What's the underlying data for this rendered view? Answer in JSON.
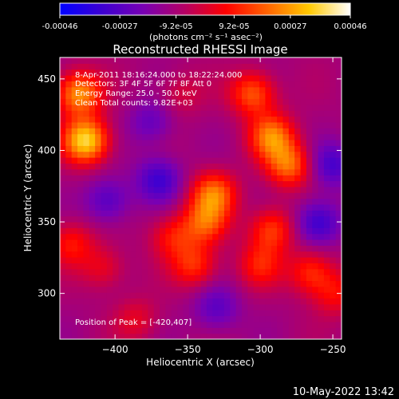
{
  "colorbar": {
    "tick_labels": [
      "-0.00046",
      "-0.00027",
      "-9.2e-05",
      "9.2e-05",
      "0.00027",
      "0.00046"
    ],
    "tick_values": [
      -0.00046,
      -0.00027,
      -9.2e-05,
      9.2e-05,
      0.00027,
      0.00046
    ],
    "range": [
      -0.00046,
      0.00046
    ],
    "units": "(photons cm⁻² s⁻¹ asec⁻²)",
    "colors": [
      "#0000ff",
      "#3c00d2",
      "#7800b4",
      "#b40064",
      "#ff0000",
      "#ff6400",
      "#ffc800",
      "#ffffff"
    ]
  },
  "chart_data": {
    "type": "heatmap",
    "title": "Reconstructed RHESSI Image",
    "xlabel": "Heliocentric X (arcsec)",
    "ylabel": "Heliocentric Y (arcsec)",
    "xlim": [
      -438,
      -244
    ],
    "ylim": [
      268,
      465
    ],
    "xticks": [
      -400,
      -350,
      -300,
      -250
    ],
    "yticks": [
      300,
      350,
      400,
      450
    ],
    "annotations": [
      "8-Apr-2011 18:16:24.000 to 18:22:24.000",
      "Detectors: 3F 4F 5F 6F 7F 8F  Att 0",
      "Energy Range: 25.0 - 50.0 keV",
      "Clean    Total counts: 9.82E+03"
    ],
    "peak_label": "Position of Peak = [-420,407]",
    "peak": [
      -420,
      407
    ],
    "sources": [
      {
        "x": -420,
        "y": 407,
        "value": 0.00046
      },
      {
        "x": -425,
        "y": 440,
        "value": 0.00036
      },
      {
        "x": -292,
        "y": 410,
        "value": 0.00032
      },
      {
        "x": -280,
        "y": 390,
        "value": 0.0003
      },
      {
        "x": -305,
        "y": 440,
        "value": 0.00028
      },
      {
        "x": -332,
        "y": 370,
        "value": 0.0003
      },
      {
        "x": -338,
        "y": 350,
        "value": 0.00025
      },
      {
        "x": -345,
        "y": 320,
        "value": 0.00022
      },
      {
        "x": -360,
        "y": 340,
        "value": 0.00018
      },
      {
        "x": -292,
        "y": 345,
        "value": 0.00024
      },
      {
        "x": -300,
        "y": 320,
        "value": 0.00018
      },
      {
        "x": -265,
        "y": 315,
        "value": 0.00022
      },
      {
        "x": -248,
        "y": 300,
        "value": 0.00016
      },
      {
        "x": -430,
        "y": 335,
        "value": 0.00018
      },
      {
        "x": -408,
        "y": 318,
        "value": 0.00014
      },
      {
        "x": -385,
        "y": 282,
        "value": 0.00012
      },
      {
        "x": -355,
        "y": 440,
        "value": 0.0001
      },
      {
        "x": -370,
        "y": 380,
        "value": -0.00022
      },
      {
        "x": -260,
        "y": 350,
        "value": -0.00024
      },
      {
        "x": -405,
        "y": 365,
        "value": -0.00018
      },
      {
        "x": -330,
        "y": 290,
        "value": -0.00016
      },
      {
        "x": -250,
        "y": 390,
        "value": -0.0002
      },
      {
        "x": -375,
        "y": 420,
        "value": -0.00014
      }
    ]
  },
  "footer": {
    "timestamp": "10-May-2022 13:42"
  }
}
